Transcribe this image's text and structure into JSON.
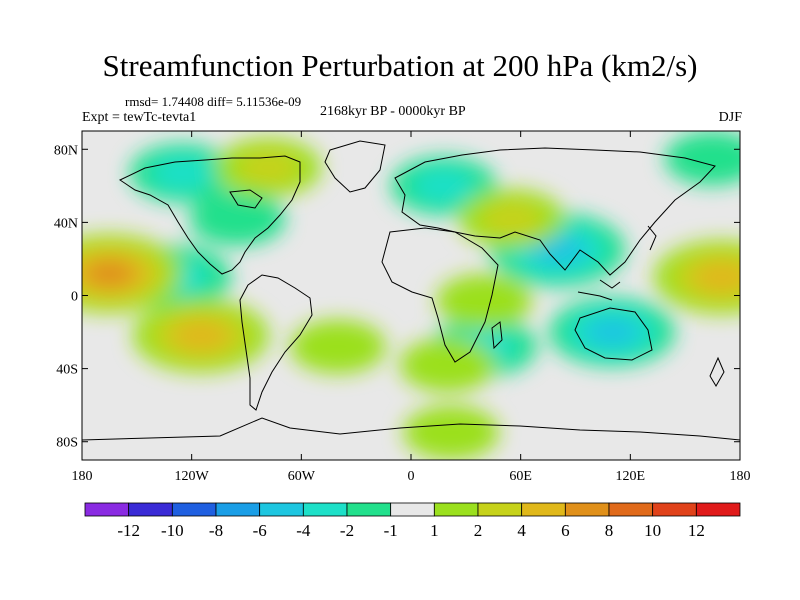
{
  "chart_data": {
    "type": "heatmap",
    "title": "Streamfunction Perturbation at 200 hPa (km2/s)",
    "stats": "rmsd= 1.74408 diff= 5.11536e-09",
    "experiment": "Expt = tewTc-tevta1",
    "period": "2168kyr BP - 0000kyr BP",
    "season": "DJF",
    "x_range": [
      -180,
      180
    ],
    "y_range": [
      -90,
      90
    ],
    "x_ticks": [
      {
        "value": -180,
        "label": "180"
      },
      {
        "value": -120,
        "label": "120W"
      },
      {
        "value": -60,
        "label": "60W"
      },
      {
        "value": 0,
        "label": "0"
      },
      {
        "value": 60,
        "label": "60E"
      },
      {
        "value": 120,
        "label": "120E"
      },
      {
        "value": 180,
        "label": "180"
      }
    ],
    "y_ticks": [
      {
        "value": 80,
        "label": "80N"
      },
      {
        "value": 40,
        "label": "40N"
      },
      {
        "value": 0,
        "label": "0"
      },
      {
        "value": -40,
        "label": "40S"
      },
      {
        "value": -80,
        "label": "80S"
      }
    ],
    "colorbar": {
      "colors": [
        "#8a2be2",
        "#3a2bd6",
        "#1f5fe0",
        "#1a9ee6",
        "#1dc6e0",
        "#1de0c8",
        "#22e08c",
        "#e8e8e8",
        "#9be01e",
        "#c6d21a",
        "#e0b81a",
        "#e0901a",
        "#e06a1a",
        "#e0421a",
        "#e01a1a"
      ],
      "levels": [
        -12,
        -10,
        -8,
        -6,
        -4,
        -2,
        -1,
        1,
        2,
        4,
        6,
        8,
        10,
        12
      ],
      "labels": [
        "-12",
        "-10",
        "-8",
        "-6",
        "-4",
        "-2",
        "-1",
        "1",
        "2",
        "4",
        "6",
        "8",
        "10",
        "12"
      ]
    },
    "anomalies": [
      {
        "lon": 80,
        "lat": 25,
        "value": -6
      },
      {
        "lon": 110,
        "lat": -20,
        "value": -5
      },
      {
        "lon": 18,
        "lat": 60,
        "value": -3
      },
      {
        "lon": -130,
        "lat": 10,
        "value": -4
      },
      {
        "lon": -125,
        "lat": 67,
        "value": -3
      },
      {
        "lon": 165,
        "lat": 75,
        "value": -2
      },
      {
        "lon": -95,
        "lat": 42,
        "value": -2
      },
      {
        "lon": 40,
        "lat": -28,
        "value": -3
      },
      {
        "lon": -165,
        "lat": 12,
        "value": 7
      },
      {
        "lon": 170,
        "lat": 10,
        "value": 6
      },
      {
        "lon": -115,
        "lat": -22,
        "value": 6
      },
      {
        "lon": 55,
        "lat": 42,
        "value": 3
      },
      {
        "lon": -78,
        "lat": 70,
        "value": 3
      },
      {
        "lon": -40,
        "lat": -28,
        "value": 2
      },
      {
        "lon": 40,
        "lat": -3,
        "value": 2
      },
      {
        "lon": 20,
        "lat": -38,
        "value": 2
      },
      {
        "lon": 22,
        "lat": -75,
        "value": 2
      }
    ]
  }
}
